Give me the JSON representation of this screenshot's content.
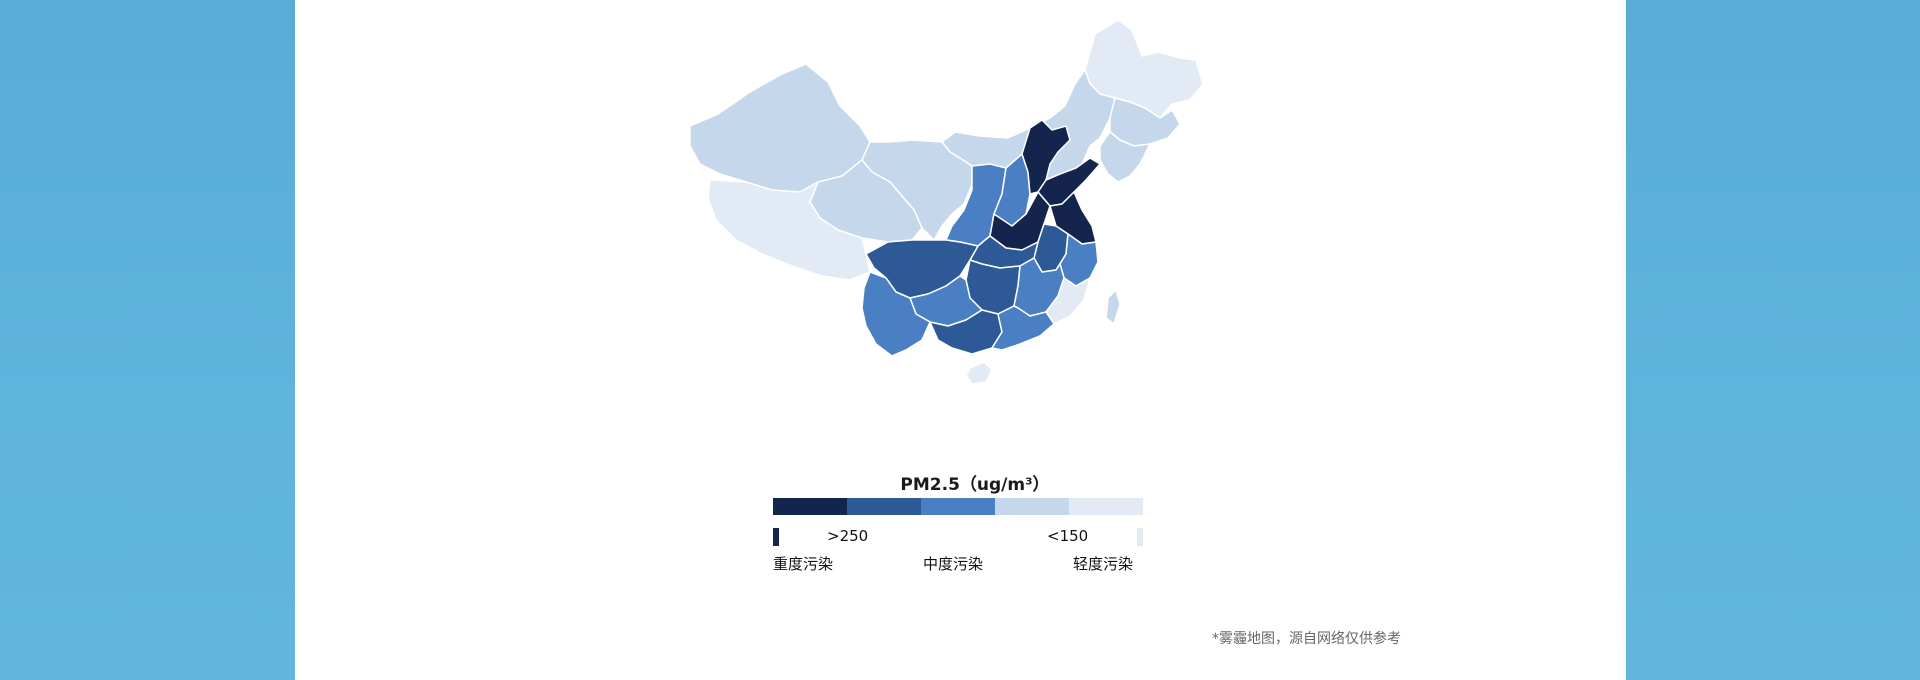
{
  "legend": {
    "title": "PM2.5（ug/m³）",
    "high_value": ">250",
    "low_value": "<150",
    "heavy_label": "重度污染",
    "medium_label": "中度污染",
    "light_label": "轻度污染",
    "scale_colors": [
      "#13254c",
      "#2d5a96",
      "#4a80c3",
      "#c4d7eb",
      "#e2ebf5"
    ]
  },
  "footnote": "*雾霾地图，源自网络仅供参考",
  "colors": {
    "background": "#5aaed6",
    "panel": "#ffffff",
    "region_border": "#ffffff"
  }
}
